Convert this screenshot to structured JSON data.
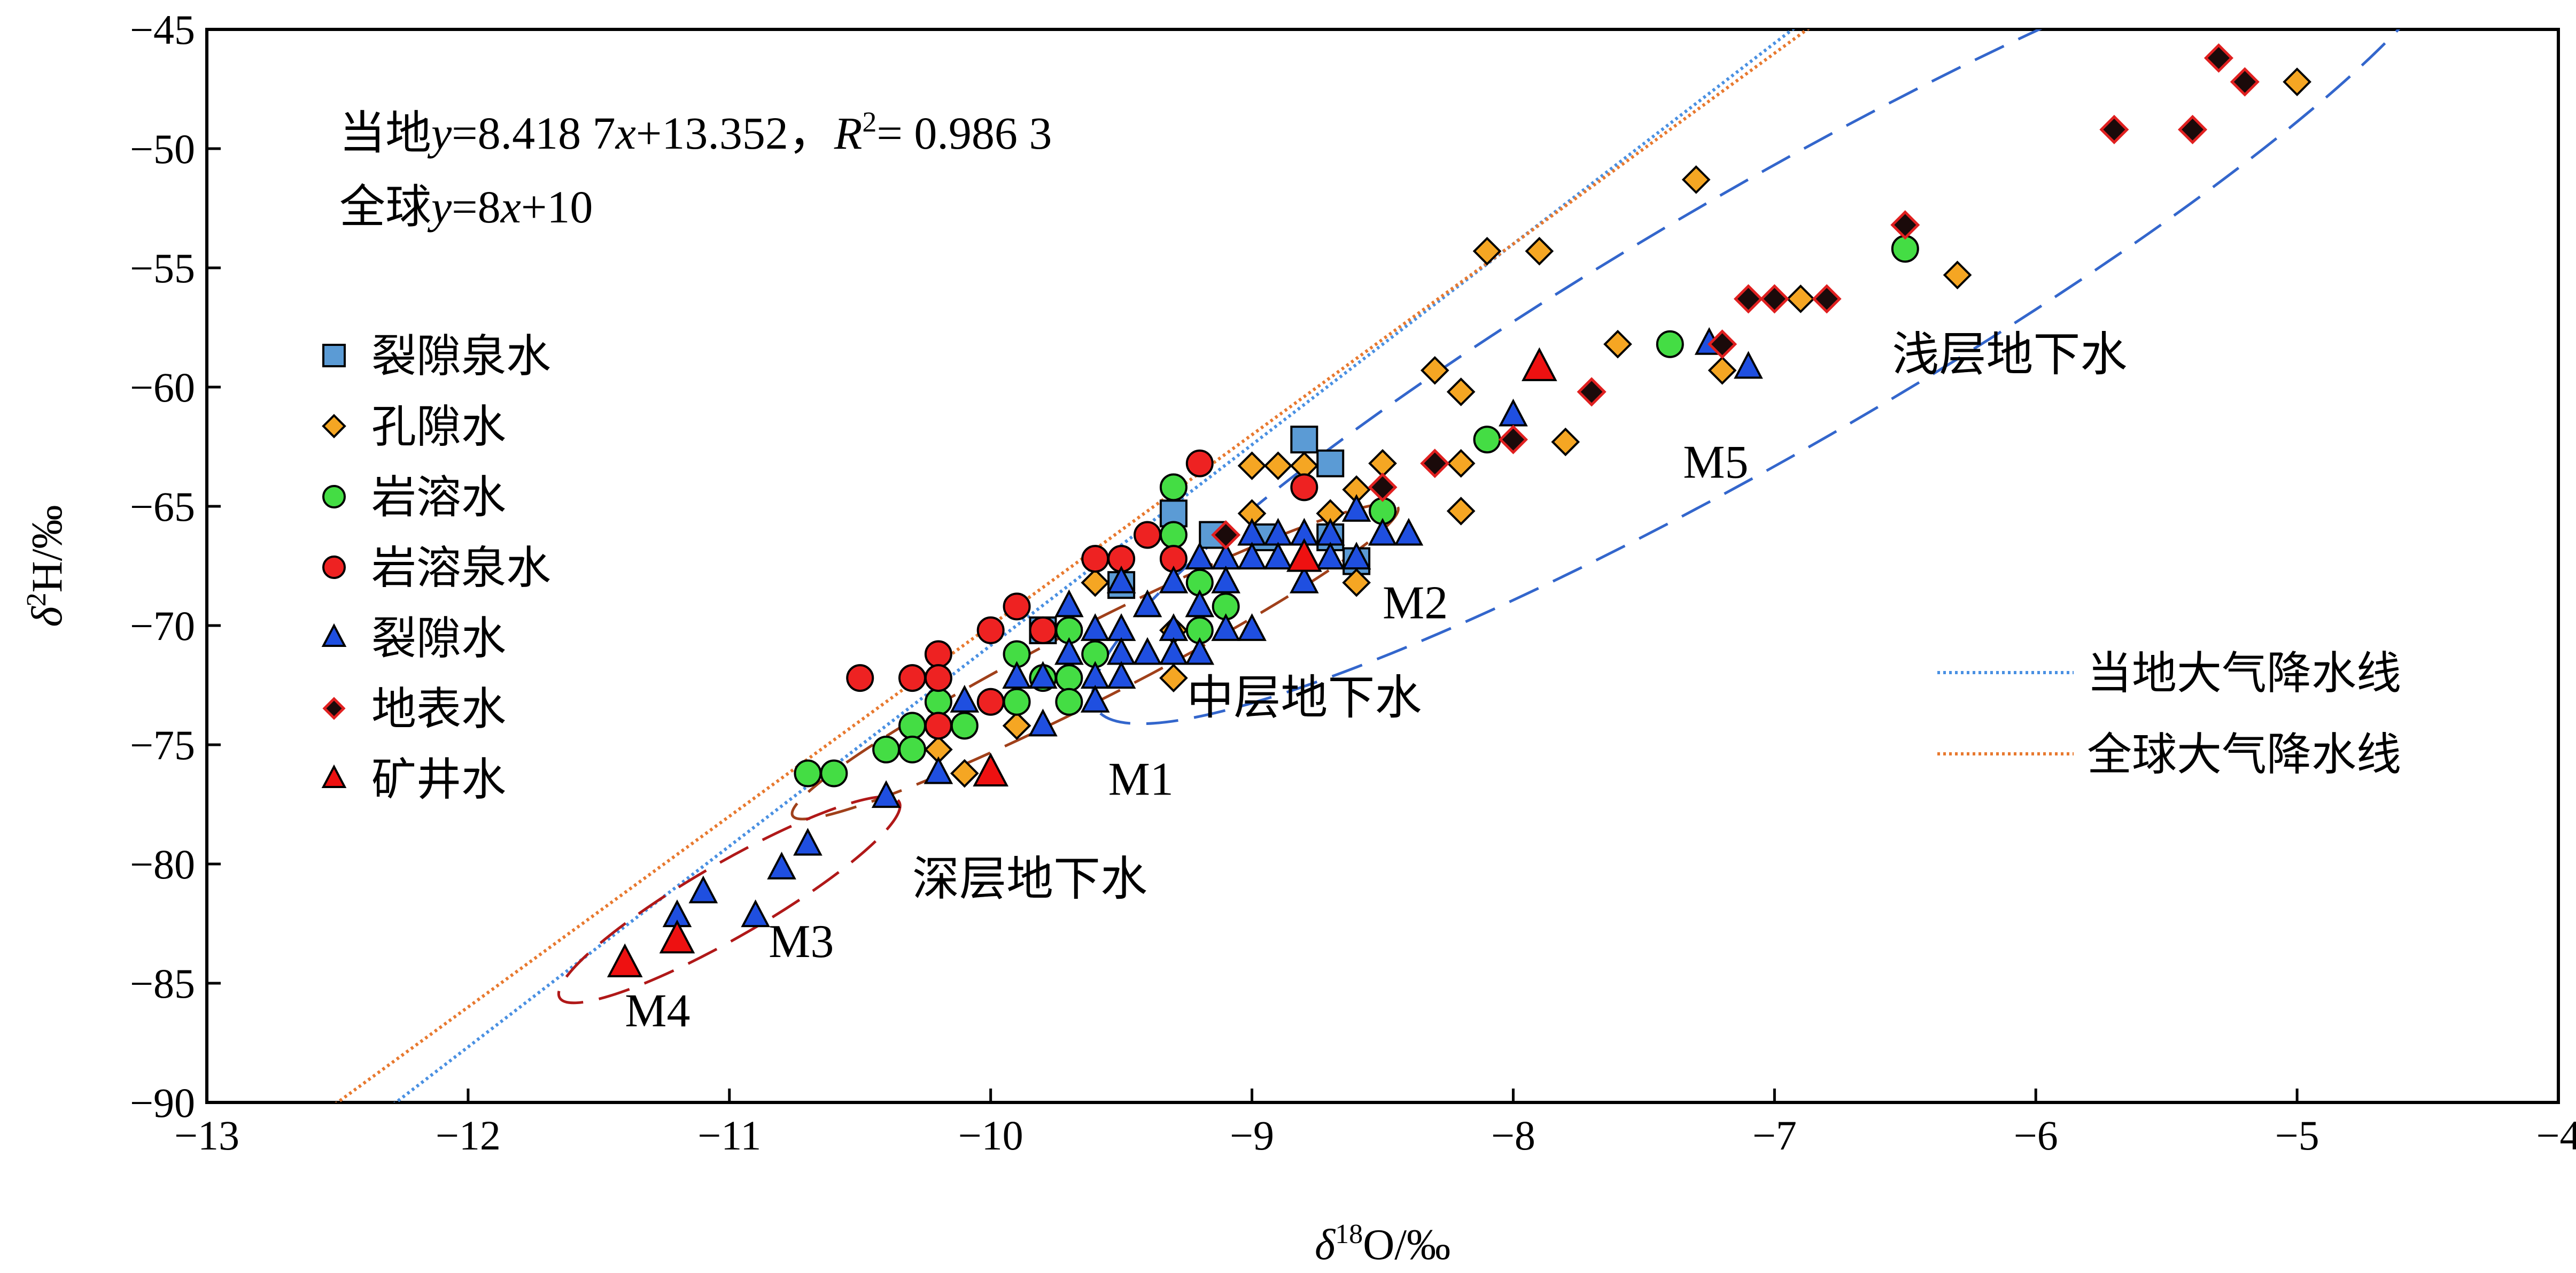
{
  "chart_data": {
    "type": "scatter",
    "xlabel": {
      "symbol": "δ",
      "sup": "18",
      "rest": "O/‰"
    },
    "ylabel": {
      "symbol": "δ",
      "sup": "2",
      "rest": "H/‰"
    },
    "xlim": [
      -13,
      -4
    ],
    "ylim": [
      -90,
      -45
    ],
    "x_ticks": [
      -13,
      -12,
      -11,
      -10,
      -9,
      -8,
      -7,
      -6,
      -5,
      -4
    ],
    "y_ticks": [
      -90,
      -85,
      -80,
      -75,
      -70,
      -65,
      -60,
      -55,
      -50,
      -45
    ],
    "x_tick_labels": [
      "−13",
      "−12",
      "−11",
      "−10",
      "−9",
      "−8",
      "−7",
      "−6",
      "−5",
      "−4"
    ],
    "y_tick_labels": [
      "−90",
      "−85",
      "−80",
      "−75",
      "−70",
      "−65",
      "−60",
      "−55",
      "−50",
      "−45"
    ],
    "grid": false,
    "equations": {
      "local": {
        "prefix": "当地",
        "y": "y",
        "eq": "=8.418 7",
        "x": "x",
        "rest": "+13.352，",
        "r": "R",
        "r_sup": "2",
        "r_val": "= 0.986 3"
      },
      "global": {
        "prefix": "全球",
        "y": "y",
        "eq": "=8",
        "x": "x",
        "rest": "+10"
      }
    },
    "legend_position": "left",
    "line_legend_position": "right",
    "series": [
      {
        "name": "裂隙泉水",
        "marker": "square",
        "color": "#5b9bd5",
        "points": [
          [
            -9.3,
            -65.3
          ],
          [
            -9.15,
            -66.2
          ],
          [
            -8.95,
            -66.3
          ],
          [
            -8.8,
            -62.2
          ],
          [
            -8.7,
            -63.2
          ],
          [
            -8.7,
            -66.3
          ],
          [
            -8.6,
            -67.3
          ],
          [
            -9.8,
            -70.2
          ],
          [
            -9.5,
            -68.3
          ]
        ]
      },
      {
        "name": "孔隙水",
        "marker": "diamond",
        "color": "#f5a623",
        "points": [
          [
            -5.0,
            -47.2
          ],
          [
            -6.3,
            -55.3
          ],
          [
            -6.9,
            -56.3
          ],
          [
            -7.3,
            -51.3
          ],
          [
            -7.2,
            -59.3
          ],
          [
            -7.6,
            -58.2
          ],
          [
            -7.8,
            -62.3
          ],
          [
            -7.9,
            -54.3
          ],
          [
            -8.1,
            -54.3
          ],
          [
            -8.2,
            -60.2
          ],
          [
            -8.2,
            -63.2
          ],
          [
            -8.2,
            -65.2
          ],
          [
            -8.3,
            -59.3
          ],
          [
            -8.5,
            -63.2
          ],
          [
            -8.6,
            -64.3
          ],
          [
            -8.6,
            -68.2
          ],
          [
            -8.7,
            -65.3
          ],
          [
            -8.8,
            -63.3
          ],
          [
            -8.9,
            -63.3
          ],
          [
            -9.0,
            -63.3
          ],
          [
            -9.0,
            -65.3
          ],
          [
            -9.3,
            -70.2
          ],
          [
            -9.3,
            -72.2
          ],
          [
            -9.6,
            -68.2
          ],
          [
            -9.9,
            -74.2
          ],
          [
            -10.1,
            -76.2
          ],
          [
            -10.2,
            -75.2
          ]
        ]
      },
      {
        "name": "岩溶水",
        "marker": "circle",
        "color": "#44dd44",
        "points": [
          [
            -10.7,
            -76.2
          ],
          [
            -10.6,
            -76.2
          ],
          [
            -10.4,
            -75.2
          ],
          [
            -10.3,
            -74.2
          ],
          [
            -10.3,
            -75.2
          ],
          [
            -10.2,
            -73.2
          ],
          [
            -10.1,
            -74.2
          ],
          [
            -9.9,
            -71.2
          ],
          [
            -9.9,
            -73.2
          ],
          [
            -9.8,
            -72.2
          ],
          [
            -9.7,
            -70.2
          ],
          [
            -9.7,
            -72.2
          ],
          [
            -9.7,
            -73.2
          ],
          [
            -9.6,
            -71.2
          ],
          [
            -9.3,
            -64.2
          ],
          [
            -9.3,
            -66.2
          ],
          [
            -9.2,
            -68.2
          ],
          [
            -9.2,
            -70.2
          ],
          [
            -9.1,
            -69.2
          ],
          [
            -8.5,
            -65.2
          ],
          [
            -8.1,
            -62.2
          ],
          [
            -7.4,
            -58.2
          ],
          [
            -6.5,
            -54.2
          ]
        ]
      },
      {
        "name": "岩溶泉水",
        "marker": "circle",
        "color": "#ee2222",
        "points": [
          [
            -10.5,
            -72.2
          ],
          [
            -10.3,
            -72.2
          ],
          [
            -10.2,
            -71.2
          ],
          [
            -10.2,
            -72.2
          ],
          [
            -10.2,
            -74.2
          ],
          [
            -10.0,
            -70.2
          ],
          [
            -10.0,
            -73.2
          ],
          [
            -9.9,
            -69.2
          ],
          [
            -9.8,
            -70.2
          ],
          [
            -9.6,
            -67.2
          ],
          [
            -9.5,
            -67.2
          ],
          [
            -9.4,
            -66.2
          ],
          [
            -9.3,
            -67.2
          ],
          [
            -9.2,
            -63.2
          ],
          [
            -8.8,
            -64.2
          ]
        ]
      },
      {
        "name": "裂隙水",
        "marker": "triangle",
        "color": "#1f4fe0",
        "points": [
          [
            -11.2,
            -82.2
          ],
          [
            -11.1,
            -81.2
          ],
          [
            -10.9,
            -82.2
          ],
          [
            -10.8,
            -80.2
          ],
          [
            -10.7,
            -79.2
          ],
          [
            -10.4,
            -77.2
          ],
          [
            -10.2,
            -76.2
          ],
          [
            -10.1,
            -73.2
          ],
          [
            -9.9,
            -72.2
          ],
          [
            -9.8,
            -74.2
          ],
          [
            -9.8,
            -72.2
          ],
          [
            -9.7,
            -69.2
          ],
          [
            -9.7,
            -71.2
          ],
          [
            -9.6,
            -70.2
          ],
          [
            -9.6,
            -72.2
          ],
          [
            -9.6,
            -73.2
          ],
          [
            -9.5,
            -68.2
          ],
          [
            -9.5,
            -70.2
          ],
          [
            -9.5,
            -71.2
          ],
          [
            -9.5,
            -72.2
          ],
          [
            -9.4,
            -69.2
          ],
          [
            -9.4,
            -71.2
          ],
          [
            -9.3,
            -68.2
          ],
          [
            -9.3,
            -70.2
          ],
          [
            -9.3,
            -71.2
          ],
          [
            -9.2,
            -67.2
          ],
          [
            -9.2,
            -69.2
          ],
          [
            -9.2,
            -71.2
          ],
          [
            -9.1,
            -67.2
          ],
          [
            -9.1,
            -68.2
          ],
          [
            -9.1,
            -70.2
          ],
          [
            -9.0,
            -66.2
          ],
          [
            -9.0,
            -67.2
          ],
          [
            -9.0,
            -70.2
          ],
          [
            -8.9,
            -66.2
          ],
          [
            -8.9,
            -67.2
          ],
          [
            -8.8,
            -66.2
          ],
          [
            -8.8,
            -68.2
          ],
          [
            -8.7,
            -66.2
          ],
          [
            -8.7,
            -67.2
          ],
          [
            -8.6,
            -65.2
          ],
          [
            -8.6,
            -67.2
          ],
          [
            -8.5,
            -66.2
          ],
          [
            -8.4,
            -66.2
          ],
          [
            -8.0,
            -61.2
          ],
          [
            -7.25,
            -58.2
          ],
          [
            -7.1,
            -59.2
          ]
        ]
      },
      {
        "name": "地表水",
        "marker": "diamond_dark",
        "color": "#e02020",
        "points": [
          [
            -5.3,
            -46.2
          ],
          [
            -5.2,
            -47.2
          ],
          [
            -5.4,
            -49.2
          ],
          [
            -5.7,
            -49.2
          ],
          [
            -6.5,
            -53.2
          ],
          [
            -6.8,
            -56.3
          ],
          [
            -7.0,
            -56.3
          ],
          [
            -7.1,
            -56.3
          ],
          [
            -7.2,
            -58.2
          ],
          [
            -7.7,
            -60.2
          ],
          [
            -8.0,
            -62.2
          ],
          [
            -8.3,
            -63.2
          ],
          [
            -8.5,
            -64.2
          ],
          [
            -9.1,
            -66.2
          ]
        ]
      },
      {
        "name": "矿井水",
        "marker": "triangle",
        "color": "#ee1111",
        "points": [
          [
            -11.4,
            -84.2
          ],
          [
            -11.2,
            -83.2
          ],
          [
            -10.0,
            -76.2
          ],
          [
            -8.8,
            -67.2
          ],
          [
            -7.9,
            -59.2
          ]
        ]
      }
    ],
    "lines": [
      {
        "name": "当地大气降水线",
        "slope": 8.4187,
        "intercept": 13.352,
        "color": "#4a90e2"
      },
      {
        "name": "全球大气降水线",
        "slope": 8.0,
        "intercept": 10.0,
        "color": "#e8792f"
      }
    ],
    "ellipses": [
      {
        "color": "#3366cc",
        "cx": -7.0,
        "cy": -57.0,
        "rx": 3.0,
        "ry": 5.5,
        "rotate": -30
      },
      {
        "color": "#a0401a",
        "cx": -9.6,
        "cy": -71.5,
        "rx": 1.3,
        "ry": 1.55,
        "rotate": -27
      },
      {
        "color": "#b01818",
        "cx": -11.0,
        "cy": -81.5,
        "rx": 0.75,
        "ry": 1.55,
        "rotate": -30
      }
    ],
    "annotations": [
      {
        "text": "浅层地下水",
        "x": -6.55,
        "y": -59.3
      },
      {
        "text": "M5",
        "x": -7.35,
        "y": -63.8
      },
      {
        "text": "M2",
        "x": -8.5,
        "y": -69.7
      },
      {
        "text": "中层地下水",
        "x": -9.25,
        "y": -73.7
      },
      {
        "text": "M1",
        "x": -9.55,
        "y": -77.1
      },
      {
        "text": "深层地下水",
        "x": -10.3,
        "y": -81.3
      },
      {
        "text": "M3",
        "x": -10.85,
        "y": -83.9
      },
      {
        "text": "M4",
        "x": -11.4,
        "y": -86.8
      }
    ]
  }
}
